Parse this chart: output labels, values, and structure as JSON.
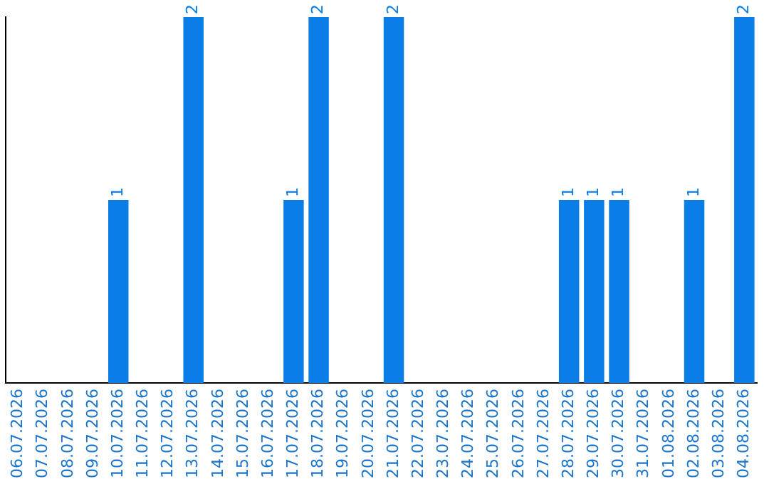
{
  "chart_data": {
    "type": "bar",
    "categories": [
      "06.07.2026",
      "07.07.2026",
      "08.07.2026",
      "09.07.2026",
      "10.07.2026",
      "11.07.2026",
      "12.07.2026",
      "13.07.2026",
      "14.07.2026",
      "15.07.2026",
      "16.07.2026",
      "17.07.2026",
      "18.07.2026",
      "19.07.2026",
      "20.07.2026",
      "21.07.2026",
      "22.07.2026",
      "23.07.2026",
      "24.07.2026",
      "25.07.2026",
      "26.07.2026",
      "27.07.2026",
      "28.07.2026",
      "29.07.2026",
      "30.07.2026",
      "31.07.2026",
      "01.08.2026",
      "02.08.2026",
      "03.08.2026",
      "04.08.2026"
    ],
    "values": [
      0,
      0,
      0,
      0,
      1,
      0,
      0,
      2,
      0,
      0,
      0,
      1,
      2,
      0,
      0,
      2,
      0,
      0,
      0,
      0,
      0,
      0,
      1,
      1,
      1,
      0,
      0,
      1,
      0,
      2
    ],
    "value_labels": [
      null,
      null,
      null,
      null,
      "1",
      null,
      null,
      "2",
      null,
      null,
      null,
      "1",
      "2",
      null,
      null,
      "2",
      null,
      null,
      null,
      null,
      null,
      null,
      "1",
      "1",
      "1",
      null,
      null,
      "1",
      null,
      "2"
    ],
    "color": "#0a7ee6",
    "ylim": [
      0,
      2
    ],
    "grid": false,
    "legend": false,
    "tick_labels": "x"
  }
}
